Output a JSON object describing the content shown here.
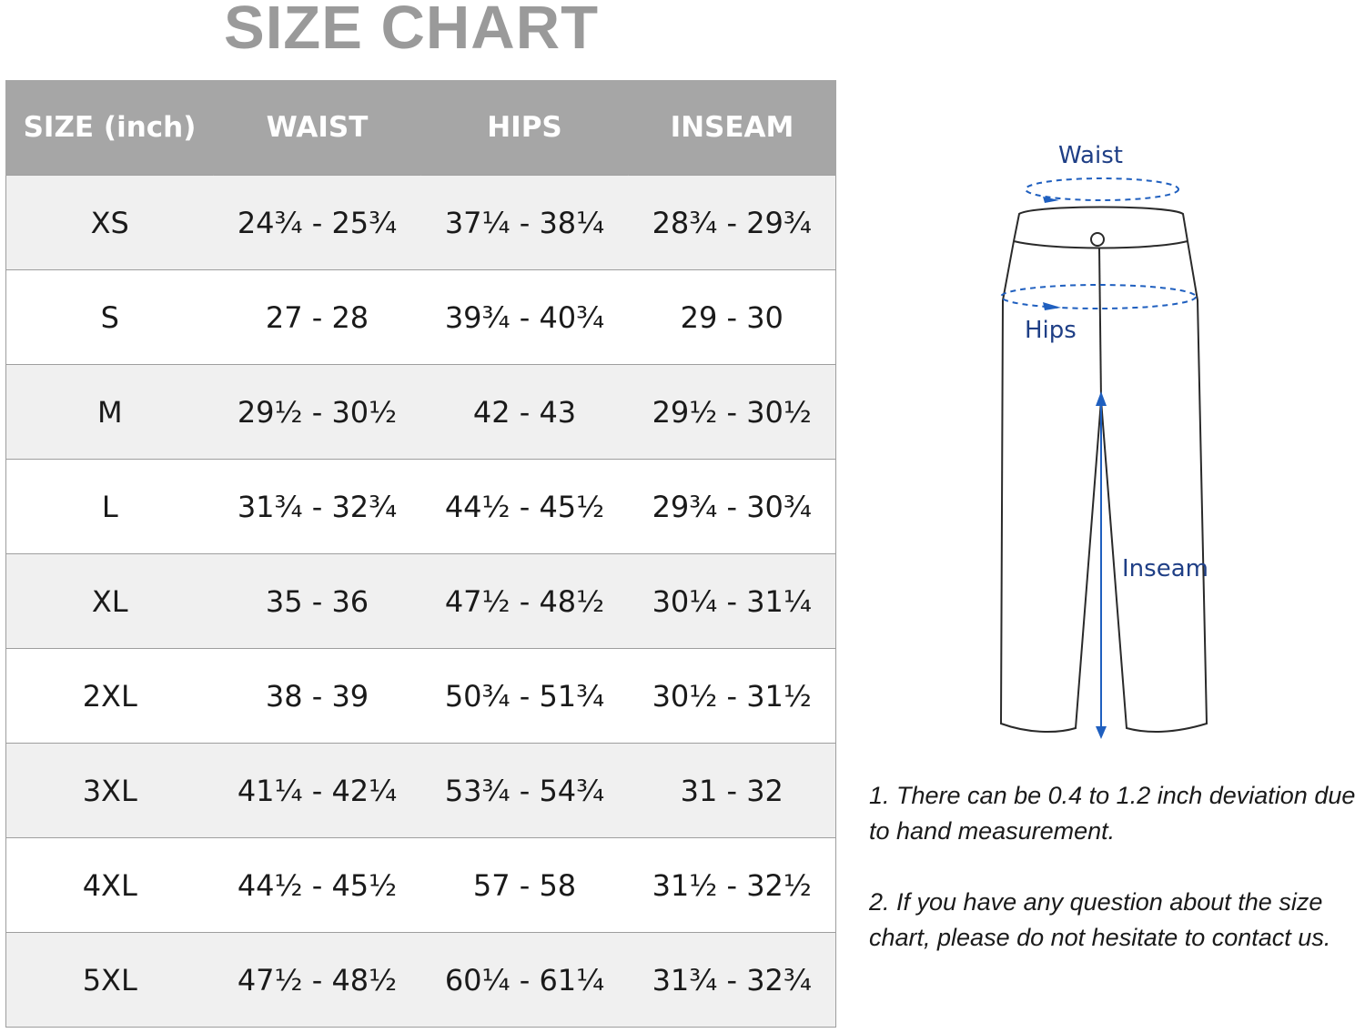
{
  "title": "SIZE CHART",
  "table": {
    "headers": [
      "SIZE (inch)",
      "WAIST",
      "HIPS",
      "INSEAM"
    ],
    "rows": [
      [
        "XS",
        "24¾ - 25¾",
        "37¼ - 38¼",
        "28¾ - 29¾"
      ],
      [
        "S",
        "27 - 28",
        "39¾ - 40¾",
        "29 - 30"
      ],
      [
        "M",
        "29½ - 30½",
        "42 - 43",
        "29½ - 30½"
      ],
      [
        "L",
        "31¾ - 32¾",
        "44½ - 45½",
        "29¾ - 30¾"
      ],
      [
        "XL",
        "35 - 36",
        "47½ - 48½",
        "30¼ - 31¼"
      ],
      [
        "2XL",
        "38 - 39",
        "50¾ - 51¾",
        "30½ - 31½"
      ],
      [
        "3XL",
        "41¼ - 42¼",
        "53¾ - 54¾",
        "31 - 32"
      ],
      [
        "4XL",
        "44½ - 45½",
        "57 - 58",
        "31½ - 32½"
      ],
      [
        "5XL",
        "47½ - 48½",
        "60¼ - 61¼",
        "31¾ - 32¾"
      ]
    ]
  },
  "diagram": {
    "waist_label": "Waist",
    "hips_label": "Hips",
    "inseam_label": "Inseam",
    "accent_color": "#1f5fbf"
  },
  "notes": [
    "1. There can be 0.4 to 1.2 inch deviation due to hand measurement.",
    "2. If you have any question about the size chart, please do not hesitate to contact us."
  ]
}
